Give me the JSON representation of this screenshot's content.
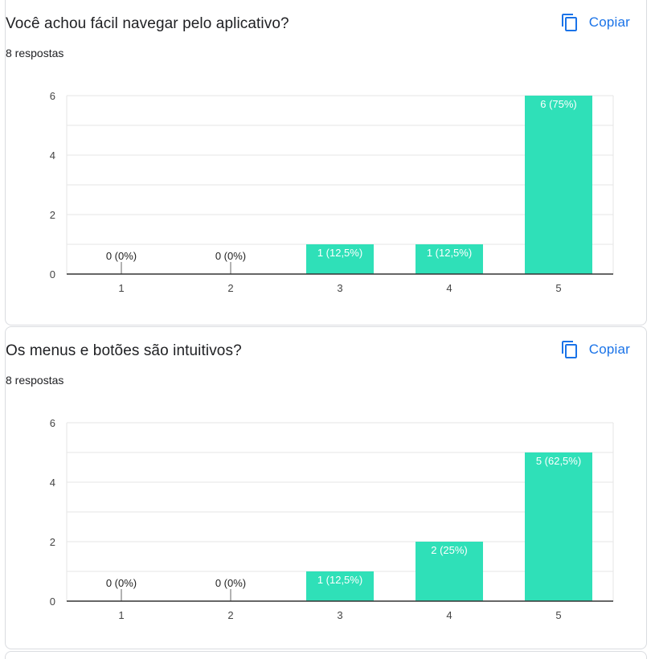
{
  "copy_label": "Copiar",
  "icons": {
    "copy": "copy-icon"
  },
  "colors": {
    "bar": "#2fe0b8",
    "accent": "#1a73e8",
    "grid": "#e6e6e6",
    "axis": "#333333"
  },
  "questions": [
    {
      "title": "Você achou fácil navegar pelo aplicativo?",
      "responses": "8 respostas"
    },
    {
      "title": "Os menus e botões são intuitivos?",
      "responses": "8 respostas"
    }
  ],
  "chart_data": [
    {
      "type": "bar",
      "categories": [
        "1",
        "2",
        "3",
        "4",
        "5"
      ],
      "values": [
        0,
        0,
        1,
        1,
        6
      ],
      "data_labels": [
        "0 (0%)",
        "0 (0%)",
        "1 (12,5%)",
        "1 (12,5%)",
        "6 (75%)"
      ],
      "y_ticks": [
        0,
        2,
        4,
        6
      ],
      "ylim": [
        0,
        6
      ],
      "grid": true
    },
    {
      "type": "bar",
      "categories": [
        "1",
        "2",
        "3",
        "4",
        "5"
      ],
      "values": [
        0,
        0,
        1,
        2,
        5
      ],
      "data_labels": [
        "0 (0%)",
        "0 (0%)",
        "1 (12,5%)",
        "2 (25%)",
        "5 (62,5%)"
      ],
      "y_ticks": [
        0,
        2,
        4,
        6
      ],
      "ylim": [
        0,
        6
      ],
      "grid": true
    }
  ]
}
